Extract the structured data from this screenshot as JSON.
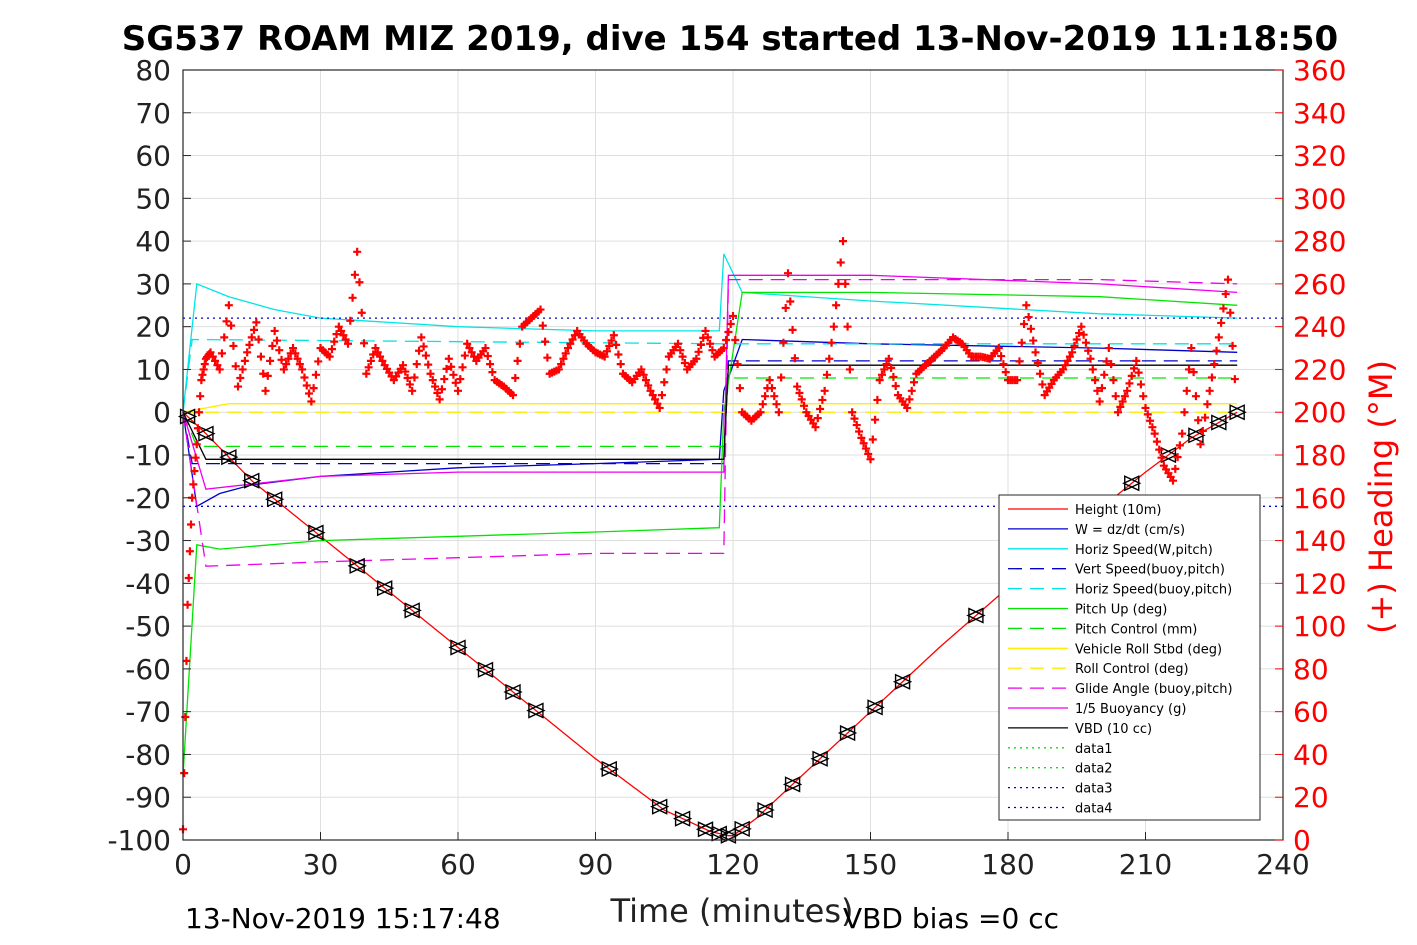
{
  "chart_data": {
    "type": "line",
    "title": "SG537 ROAM MIZ 2019, dive 154 started 13-Nov-2019 11:18:50",
    "xlabel": "Time (minutes)",
    "ylabel": "",
    "ylabel_right": "(+) Heading (°M)",
    "xlim": [
      0,
      240
    ],
    "ylim": [
      -100,
      80
    ],
    "ylim_right": [
      0,
      360
    ],
    "x_ticks": [
      "0",
      "30",
      "60",
      "90",
      "120",
      "150",
      "180",
      "210",
      "240"
    ],
    "y_ticks": [
      "80",
      "70",
      "60",
      "50",
      "40",
      "30",
      "20",
      "10",
      "0",
      "-10",
      "-20",
      "-30",
      "-40",
      "-50",
      "-60",
      "-70",
      "-80",
      "-90",
      "-100"
    ],
    "y_ticks_right": [
      "360",
      "340",
      "320",
      "300",
      "280",
      "260",
      "240",
      "220",
      "200",
      "180",
      "160",
      "140",
      "120",
      "100",
      "80",
      "60",
      "40",
      "20",
      "0"
    ],
    "grid": true,
    "legend_position": "bottom-right",
    "footer_left": "13-Nov-2019 15:17:48",
    "footer_right": "VBD bias =0 cc",
    "colors": {
      "height": "#ff0000",
      "w": "#0000cc",
      "horiz": "#00e5e5",
      "pitch": "#00e600",
      "roll": "#ffee00",
      "glide": "#ee00ee",
      "vbd": "#000000",
      "heading": "#ff0000"
    },
    "series": [
      {
        "name": "Height (10m)",
        "x": [
          0,
          5,
          15,
          30,
          45,
          60,
          75,
          90,
          105,
          115,
          119,
          120,
          125,
          140,
          150,
          165,
          180,
          195,
          210,
          220,
          230
        ],
        "y": [
          0,
          -5,
          -16,
          -29,
          -42,
          -55,
          -68,
          -81,
          -93,
          -98,
          -99,
          -99,
          -95,
          -80,
          -70,
          -55,
          -41,
          -27,
          -14,
          -6,
          0
        ]
      },
      {
        "name": "W = dz/dt (cm/s)",
        "x": [
          0,
          3,
          8,
          15,
          30,
          60,
          90,
          117,
          118,
          122,
          150,
          200,
          230
        ],
        "y": [
          0,
          -22,
          -19,
          -17,
          -15,
          -13,
          -12,
          -11,
          5,
          17,
          16,
          15,
          14
        ]
      },
      {
        "name": "Horiz Speed(W,pitch)",
        "x": [
          0,
          3,
          10,
          20,
          30,
          60,
          90,
          117,
          118,
          122,
          150,
          200,
          230
        ],
        "y": [
          0,
          30,
          27,
          24,
          22,
          20,
          19,
          19,
          37,
          28,
          26,
          23,
          22
        ]
      },
      {
        "name": "Vert Speed(buoy,pitch)",
        "x": [
          0,
          2,
          118,
          119,
          230
        ],
        "y": [
          0,
          -12,
          -12,
          12,
          12
        ]
      },
      {
        "name": "Horiz Speed(buoy,pitch)",
        "x": [
          0,
          2,
          118,
          119,
          230
        ],
        "y": [
          0,
          17,
          16,
          16,
          16
        ]
      },
      {
        "name": "Pitch Up (deg)",
        "x": [
          0,
          3,
          8,
          30,
          60,
          90,
          117,
          118,
          122,
          150,
          200,
          230
        ],
        "y": [
          -85,
          -31,
          -32,
          -30,
          -29,
          -28,
          -27,
          0,
          28,
          28,
          27,
          25
        ]
      },
      {
        "name": "Pitch Control (mm)",
        "x": [
          0,
          3,
          118,
          119,
          230
        ],
        "y": [
          0,
          -8,
          -8,
          8,
          8
        ]
      },
      {
        "name": "Vehicle Roll Stbd (deg)",
        "x": [
          0,
          10,
          30,
          60,
          90,
          118,
          125,
          150,
          180,
          210,
          230
        ],
        "y": [
          0,
          2,
          2,
          2,
          2,
          2,
          2,
          2,
          2,
          2,
          2
        ]
      },
      {
        "name": "Roll Control (deg)",
        "x": [
          0,
          230
        ],
        "y": [
          0,
          0
        ]
      },
      {
        "name": "Glide Angle (buoy,pitch)",
        "x": [
          0,
          5,
          30,
          60,
          90,
          118,
          119,
          150,
          200,
          230
        ],
        "y": [
          0,
          -36,
          -35,
          -34,
          -33,
          -33,
          31,
          31,
          31,
          30
        ]
      },
      {
        "name": "1/5 Buoyancy (g)",
        "x": [
          0,
          5,
          30,
          60,
          90,
          118,
          119,
          150,
          200,
          230
        ],
        "y": [
          0,
          -18,
          -15,
          -14,
          -14,
          -14,
          32,
          32,
          30,
          28
        ]
      },
      {
        "name": "VBD (10 cc)",
        "x": [
          0,
          5,
          118,
          119,
          230
        ],
        "y": [
          0,
          -11,
          -11,
          11,
          11
        ]
      },
      {
        "name": "data1",
        "x": [],
        "y": []
      },
      {
        "name": "data2",
        "x": [],
        "y": []
      },
      {
        "name": "data3",
        "x": [
          0,
          240
        ],
        "y": [
          22,
          22
        ]
      },
      {
        "name": "data4",
        "x": [
          0,
          240
        ],
        "y": [
          -22,
          -22
        ]
      }
    ],
    "heading": {
      "name": "(+) Heading",
      "x": [
        0,
        1,
        2,
        3,
        4,
        5,
        6,
        8,
        10,
        12,
        14,
        16,
        18,
        20,
        22,
        24,
        26,
        28,
        30,
        32,
        34,
        36,
        38,
        40,
        42,
        44,
        46,
        48,
        50,
        52,
        54,
        56,
        58,
        60,
        62,
        64,
        66,
        68,
        70,
        72,
        74,
        76,
        78,
        80,
        82,
        84,
        86,
        88,
        90,
        92,
        94,
        96,
        98,
        100,
        102,
        104,
        106,
        108,
        110,
        112,
        114,
        116,
        118,
        120,
        122,
        124,
        126,
        128,
        130,
        132,
        134,
        136,
        138,
        140,
        142,
        144,
        146,
        148,
        150,
        152,
        154,
        156,
        158,
        160,
        162,
        164,
        166,
        168,
        170,
        172,
        174,
        176,
        178,
        180,
        182,
        184,
        186,
        188,
        190,
        192,
        194,
        196,
        198,
        200,
        202,
        204,
        206,
        208,
        210,
        212,
        214,
        216,
        218,
        220,
        222,
        224,
        226,
        228,
        230
      ],
      "y": [
        5,
        110,
        160,
        185,
        215,
        225,
        228,
        220,
        250,
        212,
        228,
        242,
        210,
        238,
        220,
        230,
        220,
        205,
        230,
        226,
        240,
        232,
        275,
        218,
        230,
        222,
        215,
        222,
        210,
        235,
        218,
        206,
        225,
        210,
        232,
        224,
        230,
        215,
        212,
        208,
        240,
        244,
        248,
        218,
        220,
        230,
        238,
        232,
        228,
        226,
        236,
        218,
        214,
        220,
        210,
        202,
        226,
        232,
        220,
        225,
        238,
        226,
        230,
        245,
        200,
        196,
        200,
        215,
        200,
        265,
        212,
        200,
        193,
        210,
        240,
        280,
        200,
        188,
        178,
        215,
        225,
        208,
        202,
        218,
        222,
        226,
        230,
        235,
        232,
        226,
        226,
        225,
        230,
        215,
        215,
        250,
        228,
        208,
        215,
        220,
        228,
        240,
        225,
        205,
        230,
        200,
        210,
        224,
        202,
        190,
        175,
        168,
        190,
        230,
        185,
        210,
        235,
        262,
        200
      ]
    }
  }
}
